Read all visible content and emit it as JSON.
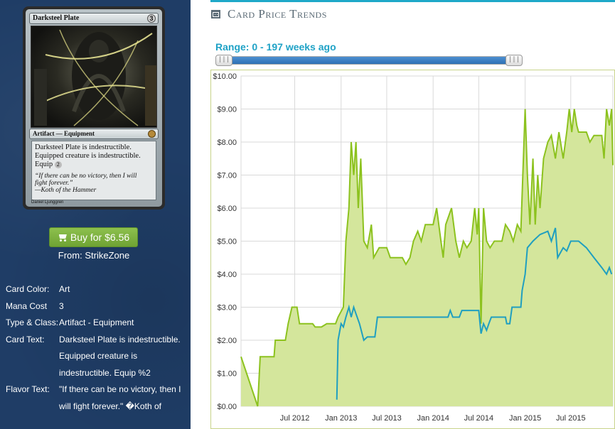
{
  "card": {
    "name": "Darksteel Plate",
    "cost": "3",
    "type_line": "Artifact — Equipment",
    "rules_lines": [
      "Darksteel Plate is indestructible.",
      "Equipped creature is indestructible.",
      "Equip"
    ],
    "equip_cost": "2",
    "flavor_lines": [
      "“If there can be no victory, then I will",
      "fight forever.”",
      "—Koth of the Hammer"
    ],
    "artist": "Daniel Ljunggren"
  },
  "buy": {
    "label": "Buy for $6.56",
    "from": "From: StrikeZone"
  },
  "details": [
    {
      "label": "Card Color:",
      "value": "Art"
    },
    {
      "label": "Mana Cost",
      "value": "3"
    },
    {
      "label": "Type & Class:",
      "value": "Artifact - Equipment"
    },
    {
      "label": "Card Text:",
      "value": "Darksteel Plate is indestructible. Equipped creature is indestructible. Equip %2"
    },
    {
      "label": "Flavor Text:",
      "value": "\"If there can be no victory, then I will fight forever.\" �Koth of"
    }
  ],
  "section": {
    "title": "Card Price Trends",
    "icon": "calendar-icon"
  },
  "range": {
    "label": "Range: 0 - 197 weeks ago",
    "low_fraction": 0.0,
    "high_fraction": 1.0
  },
  "colors": {
    "sidebar": "#1f3d66",
    "accent": "#1fa9c9",
    "buy_button": "#7cb342",
    "series_a": "#8cc21e",
    "series_a_fill": "#d4e69c",
    "series_b": "#1f9fc0"
  },
  "chart_data": {
    "type": "area",
    "x_unit": "date",
    "xlim": [
      "2011-12-01",
      "2015-12-15"
    ],
    "ylim": [
      0,
      10
    ],
    "y_ticks": [
      "$0.00",
      "$1.00",
      "$2.00",
      "$3.00",
      "$4.00",
      "$5.00",
      "$6.00",
      "$7.00",
      "$8.00",
      "$9.00",
      "$10.00"
    ],
    "x_ticks": [
      {
        "date": "2012-07-01",
        "label": "Jul 2012"
      },
      {
        "date": "2013-01-01",
        "label": "Jan 2013"
      },
      {
        "date": "2013-07-01",
        "label": "Jul 2013"
      },
      {
        "date": "2014-01-01",
        "label": "Jan 2014"
      },
      {
        "date": "2014-07-01",
        "label": "Jul 2014"
      },
      {
        "date": "2015-01-01",
        "label": "Jan 2015"
      },
      {
        "date": "2015-07-01",
        "label": "Jul 2015"
      }
    ],
    "grid": true,
    "series": [
      {
        "points": [
          [
            "2011-12-01",
            1.5
          ],
          [
            "2012-02-05",
            0.0
          ],
          [
            "2012-02-15",
            1.5
          ],
          [
            "2012-04-10",
            1.5
          ],
          [
            "2012-04-15",
            2.0
          ],
          [
            "2012-05-25",
            2.0
          ],
          [
            "2012-06-05",
            2.5
          ],
          [
            "2012-06-20",
            3.0
          ],
          [
            "2012-07-10",
            3.0
          ],
          [
            "2012-07-20",
            2.5
          ],
          [
            "2012-09-10",
            2.5
          ],
          [
            "2012-09-20",
            2.4
          ],
          [
            "2012-10-15",
            2.4
          ],
          [
            "2012-11-05",
            2.5
          ],
          [
            "2012-12-10",
            2.5
          ],
          [
            "2012-12-20",
            2.7
          ],
          [
            "2013-01-10",
            3.0
          ],
          [
            "2013-01-20",
            5.0
          ],
          [
            "2013-02-01",
            6.0
          ],
          [
            "2013-02-10",
            8.0
          ],
          [
            "2013-02-20",
            7.0
          ],
          [
            "2013-03-01",
            8.0
          ],
          [
            "2013-03-10",
            6.0
          ],
          [
            "2013-03-20",
            7.5
          ],
          [
            "2013-04-01",
            5.0
          ],
          [
            "2013-04-15",
            4.8
          ],
          [
            "2013-05-01",
            5.5
          ],
          [
            "2013-05-10",
            4.5
          ],
          [
            "2013-06-01",
            4.8
          ],
          [
            "2013-07-01",
            4.8
          ],
          [
            "2013-07-15",
            4.5
          ],
          [
            "2013-09-01",
            4.5
          ],
          [
            "2013-09-15",
            4.3
          ],
          [
            "2013-10-01",
            4.5
          ],
          [
            "2013-10-15",
            5.0
          ],
          [
            "2013-11-01",
            5.3
          ],
          [
            "2013-11-15",
            5.0
          ],
          [
            "2013-12-01",
            5.5
          ],
          [
            "2014-01-01",
            5.5
          ],
          [
            "2014-01-15",
            6.0
          ],
          [
            "2014-02-01",
            5.0
          ],
          [
            "2014-02-10",
            4.5
          ],
          [
            "2014-02-20",
            5.5
          ],
          [
            "2014-03-15",
            6.0
          ],
          [
            "2014-04-01",
            5.0
          ],
          [
            "2014-04-15",
            4.5
          ],
          [
            "2014-05-01",
            5.0
          ],
          [
            "2014-05-15",
            4.8
          ],
          [
            "2014-06-01",
            5.0
          ],
          [
            "2014-06-15",
            6.0
          ],
          [
            "2014-06-25",
            5.2
          ],
          [
            "2014-07-01",
            6.0
          ],
          [
            "2014-07-10",
            2.5
          ],
          [
            "2014-07-20",
            6.0
          ],
          [
            "2014-08-01",
            5.0
          ],
          [
            "2014-08-15",
            4.8
          ],
          [
            "2014-09-01",
            5.0
          ],
          [
            "2014-10-01",
            5.0
          ],
          [
            "2014-10-15",
            5.5
          ],
          [
            "2014-11-01",
            5.3
          ],
          [
            "2014-11-15",
            5.0
          ],
          [
            "2014-12-01",
            5.5
          ],
          [
            "2014-12-15",
            5.3
          ],
          [
            "2015-01-01",
            9.0
          ],
          [
            "2015-01-10",
            7.0
          ],
          [
            "2015-01-20",
            5.5
          ],
          [
            "2015-02-01",
            7.5
          ],
          [
            "2015-02-10",
            5.5
          ],
          [
            "2015-02-20",
            7.0
          ],
          [
            "2015-03-01",
            6.0
          ],
          [
            "2015-03-15",
            7.5
          ],
          [
            "2015-04-01",
            8.0
          ],
          [
            "2015-04-15",
            8.2
          ],
          [
            "2015-05-01",
            7.5
          ],
          [
            "2015-05-15",
            8.3
          ],
          [
            "2015-06-01",
            7.5
          ],
          [
            "2015-06-15",
            8.3
          ],
          [
            "2015-06-25",
            9.0
          ],
          [
            "2015-07-05",
            8.3
          ],
          [
            "2015-07-15",
            9.0
          ],
          [
            "2015-07-25",
            8.5
          ],
          [
            "2015-08-01",
            8.3
          ],
          [
            "2015-09-01",
            8.3
          ],
          [
            "2015-09-15",
            8.0
          ],
          [
            "2015-10-01",
            8.2
          ],
          [
            "2015-11-01",
            8.2
          ],
          [
            "2015-11-10",
            7.5
          ],
          [
            "2015-11-20",
            9.0
          ],
          [
            "2015-12-01",
            8.5
          ],
          [
            "2015-12-10",
            9.0
          ],
          [
            "2015-12-15",
            7.3
          ]
        ]
      },
      {
        "points": [
          [
            "2012-12-15",
            0.2
          ],
          [
            "2012-12-20",
            2.0
          ],
          [
            "2013-01-01",
            2.5
          ],
          [
            "2013-01-10",
            2.4
          ],
          [
            "2013-01-20",
            2.7
          ],
          [
            "2013-02-01",
            3.0
          ],
          [
            "2013-02-10",
            2.7
          ],
          [
            "2013-02-20",
            3.0
          ],
          [
            "2013-03-01",
            2.8
          ],
          [
            "2013-03-15",
            2.5
          ],
          [
            "2013-04-01",
            2.0
          ],
          [
            "2013-04-15",
            2.1
          ],
          [
            "2013-05-15",
            2.1
          ],
          [
            "2013-05-25",
            2.7
          ],
          [
            "2014-03-01",
            2.7
          ],
          [
            "2014-03-10",
            2.9
          ],
          [
            "2014-03-20",
            2.7
          ],
          [
            "2014-04-15",
            2.7
          ],
          [
            "2014-04-25",
            2.9
          ],
          [
            "2014-06-01",
            2.9
          ],
          [
            "2014-07-01",
            2.9
          ],
          [
            "2014-07-10",
            2.2
          ],
          [
            "2014-07-20",
            2.5
          ],
          [
            "2014-08-01",
            2.3
          ],
          [
            "2014-08-10",
            2.5
          ],
          [
            "2014-08-20",
            2.7
          ],
          [
            "2014-10-15",
            2.7
          ],
          [
            "2014-10-20",
            2.5
          ],
          [
            "2014-11-01",
            2.5
          ],
          [
            "2014-11-10",
            3.0
          ],
          [
            "2014-12-15",
            3.0
          ],
          [
            "2014-12-20",
            3.5
          ],
          [
            "2015-01-01",
            4.0
          ],
          [
            "2015-01-10",
            4.8
          ],
          [
            "2015-02-01",
            5.0
          ],
          [
            "2015-03-01",
            5.2
          ],
          [
            "2015-04-01",
            5.3
          ],
          [
            "2015-04-15",
            5.0
          ],
          [
            "2015-05-01",
            5.4
          ],
          [
            "2015-05-10",
            4.5
          ],
          [
            "2015-06-01",
            4.8
          ],
          [
            "2015-06-15",
            4.7
          ],
          [
            "2015-07-01",
            5.0
          ],
          [
            "2015-08-01",
            5.0
          ],
          [
            "2015-09-01",
            4.8
          ],
          [
            "2015-10-01",
            4.5
          ],
          [
            "2015-11-01",
            4.2
          ],
          [
            "2015-11-20",
            4.0
          ],
          [
            "2015-12-01",
            4.2
          ],
          [
            "2015-12-10",
            4.0
          ]
        ]
      }
    ]
  }
}
